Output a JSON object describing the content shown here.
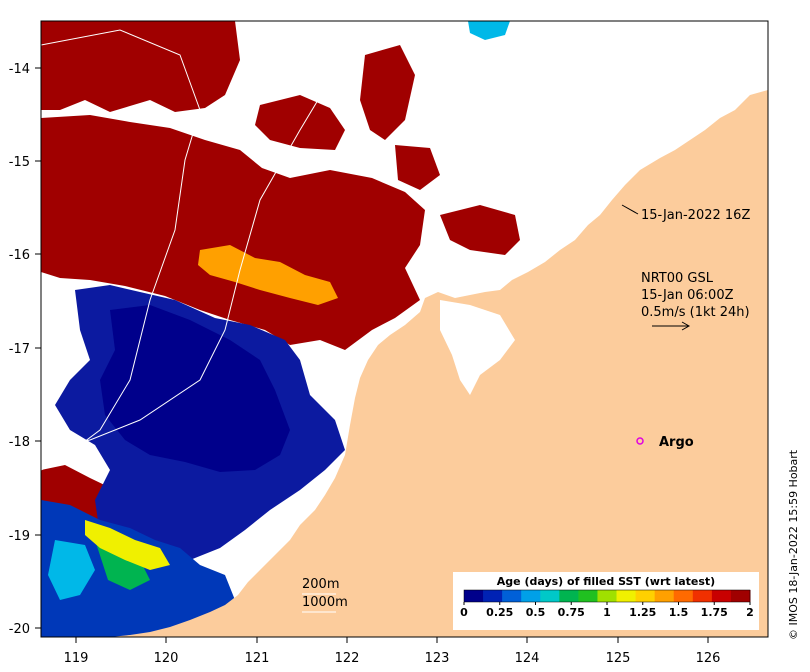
{
  "map": {
    "x_labels": [
      "119",
      "120",
      "121",
      "122",
      "123",
      "124",
      "125",
      "126"
    ],
    "y_labels": [
      "-14",
      "-15",
      "-16",
      "-17",
      "-18",
      "-19",
      "-20"
    ],
    "land_color": "#fccc9c",
    "ocean_color": "#ffffff"
  },
  "annotations": {
    "date_label": "15-Jan-2022 16Z",
    "current_title": "NRT00 GSL",
    "current_time": "15-Jan 06:00Z",
    "current_scale": "0.5m/s (1kt 24h)",
    "argo_label": "Argo",
    "contour_200": "200m",
    "contour_1000": "1000m",
    "credit": "© IMOS 18-Jan-2022 15:59 Hobart"
  },
  "colorbar": {
    "title": "Age (days) of filled SST (wrt latest)",
    "ticks": [
      "0",
      "0.25",
      "0.5",
      "0.75",
      "1",
      "1.25",
      "1.5",
      "1.75",
      "2"
    ],
    "colors": [
      "#00008b",
      "#0022b4",
      "#0060d8",
      "#00a0e8",
      "#00c8c8",
      "#00b450",
      "#20c020",
      "#a0e000",
      "#f0f000",
      "#ffd000",
      "#ffa000",
      "#ff6a00",
      "#f03000",
      "#c80000",
      "#a00000"
    ]
  },
  "colors": {
    "age_2": "#a00000",
    "age_1_5": "#ffa000",
    "age_0_25": "#0030a0",
    "age_0": "#00008b",
    "age_1_2": "#f0f000",
    "age_1_0": "#00b450",
    "age_0_75": "#00b8e8",
    "argo": "#e000e0"
  }
}
